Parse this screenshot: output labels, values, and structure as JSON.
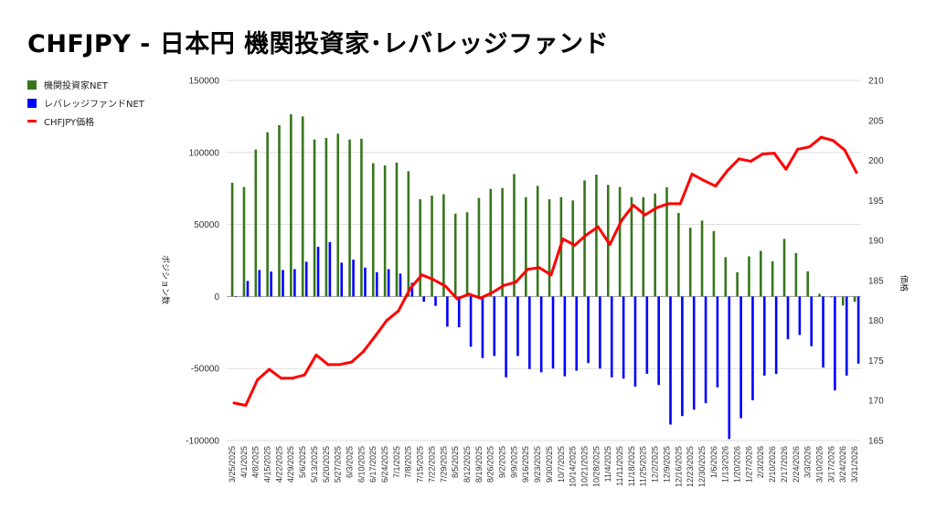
{
  "chart_data": {
    "type": "bar+line",
    "title": "CHFJPY - 日本円 機関投資家･レバレッジファンド",
    "ylabel": "ポジション数",
    "y2label": "価格",
    "ylim": [
      -100000,
      150000
    ],
    "y2lim": [
      165,
      210
    ],
    "yticks": [
      "150000",
      "100000",
      "50000",
      "0",
      "-50000",
      "-100000"
    ],
    "y2ticks": [
      "210",
      "205",
      "200",
      "195",
      "190",
      "185",
      "180",
      "175",
      "170",
      "165"
    ],
    "grid": true,
    "legend_position": "top-left",
    "x": [
      "3/25/2025",
      "4/1/2025",
      "4/8/2025",
      "4/15/2025",
      "4/22/2025",
      "4/29/2025",
      "5/6/2025",
      "5/13/2025",
      "5/20/2025",
      "5/27/2025",
      "6/3/2025",
      "6/10/2025",
      "6/17/2025",
      "6/24/2025",
      "7/1/2025",
      "7/8/2025",
      "7/15/2025",
      "7/22/2025",
      "7/29/2025",
      "8/5/2025",
      "8/12/2025",
      "8/19/2025",
      "8/26/2025",
      "9/2/2025",
      "9/9/2025",
      "9/16/2025",
      "9/23/2025",
      "9/30/2025",
      "10/7/2025",
      "10/14/2025",
      "10/21/2025",
      "10/28/2025",
      "11/4/2025",
      "11/11/2025",
      "11/18/2025",
      "11/25/2025",
      "12/2/2025",
      "12/9/2025",
      "12/16/2025",
      "12/23/2025",
      "12/30/2025",
      "1/6/2026",
      "1/13/2026",
      "1/20/2026",
      "1/27/2026",
      "2/3/2026",
      "2/10/2026",
      "2/17/2026",
      "2/24/2026",
      "3/3/2026",
      "3/10/2026",
      "3/17/2026",
      "3/24/2026",
      "3/31/2026"
    ],
    "series": [
      {
        "name": "機関投資家NET",
        "type": "bar",
        "axis": "left",
        "color": "#38761d",
        "values": [
          79000,
          76000,
          102000,
          114000,
          119000,
          126500,
          125000,
          109000,
          110000,
          113000,
          109000,
          109500,
          92500,
          91000,
          93000,
          87000,
          67500,
          70000,
          71000,
          57500,
          58500,
          68500,
          74700,
          75300,
          85000,
          69000,
          76800,
          67500,
          69000,
          66700,
          80600,
          84600,
          77500,
          76000,
          69000,
          69000,
          71500,
          75800,
          58000,
          47800,
          52700,
          45500,
          27300,
          16900,
          27900,
          31700,
          24500,
          40000,
          30200,
          17500,
          1900,
          -600,
          -6300,
          -3600
        ]
      },
      {
        "name": "レバレッジファンドNET",
        "type": "bar",
        "axis": "left",
        "color": "#0000ff",
        "values": [
          0,
          10800,
          18400,
          17300,
          18400,
          19000,
          24100,
          34500,
          37800,
          23500,
          25600,
          20100,
          16900,
          19000,
          15900,
          9500,
          -3600,
          -6500,
          -20900,
          -21300,
          -34900,
          -42700,
          -41300,
          -56100,
          -41300,
          -50300,
          -52600,
          -50000,
          -55400,
          -51500,
          -46200,
          -50000,
          -56100,
          -57000,
          -62500,
          -53600,
          -61400,
          -88900,
          -83000,
          -78500,
          -74100,
          -63100,
          -98900,
          -84500,
          -72000,
          -54900,
          -53800,
          -29700,
          -26700,
          -34500,
          -49300,
          -65200,
          -54900,
          -46600
        ]
      },
      {
        "name": "CHFJPY価格",
        "type": "line",
        "axis": "right",
        "color": "#ff0000",
        "values": [
          169.7,
          169.4,
          172.6,
          173.9,
          172.8,
          172.8,
          173.2,
          175.7,
          174.5,
          174.5,
          174.8,
          176.1,
          178.0,
          180.0,
          181.2,
          184.0,
          185.7,
          185.1,
          184.3,
          182.7,
          183.3,
          182.8,
          183.5,
          184.4,
          184.8,
          186.4,
          186.6,
          185.7,
          190.2,
          189.4,
          190.7,
          191.7,
          189.5,
          192.5,
          194.4,
          193.2,
          194.1,
          194.6,
          194.6,
          198.3,
          197.5,
          196.8,
          198.7,
          200.2,
          199.9,
          200.8,
          200.9,
          198.9,
          201.4,
          201.7,
          202.9,
          202.5,
          201.3,
          198.5
        ]
      }
    ]
  }
}
